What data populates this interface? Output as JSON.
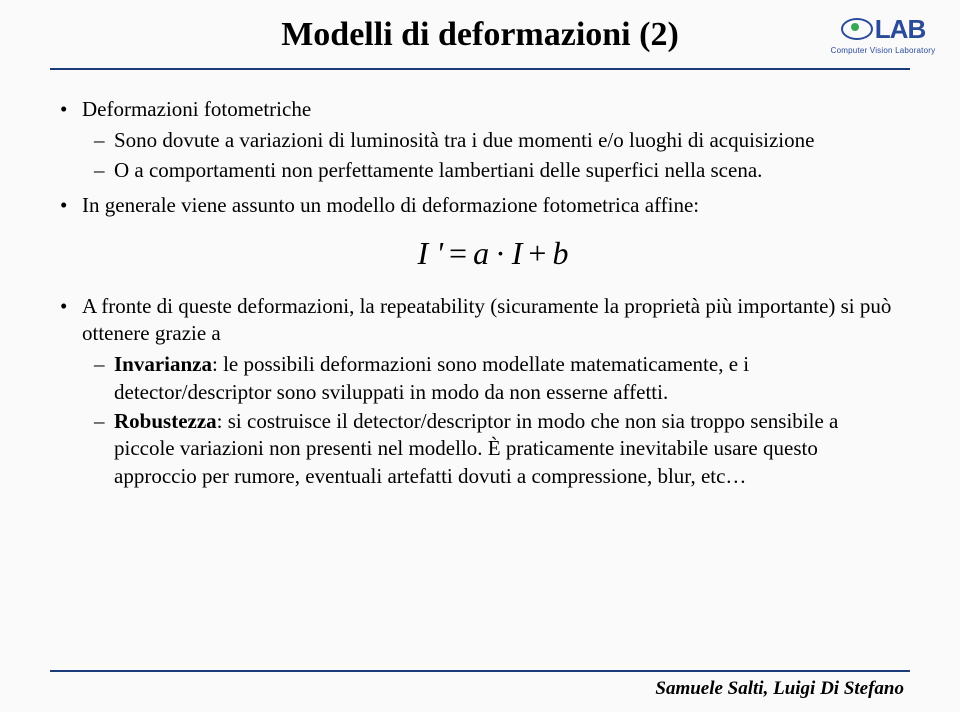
{
  "title": "Modelli di deformazioni (2)",
  "logo": {
    "name": "LAB",
    "sub": "Computer Vision Laboratory"
  },
  "bullets": {
    "b1": {
      "head": "Deformazioni fotometriche",
      "d1": "Sono dovute a variazioni di luminosità tra i due momenti e/o luoghi di acquisizione",
      "d2": "O a comportamenti non perfettamente lambertiani delle superfici nella scena."
    },
    "b2": {
      "head": "In generale viene assunto un modello di deformazione fotometrica affine:"
    },
    "b3": {
      "head": "A fronte di queste deformazioni, la repeatability (sicuramente la proprietà più importante) si può ottenere grazie a",
      "inv_label": "Invarianza",
      "inv_text": ": le possibili deformazioni sono modellate matematicamente, e i detector/descriptor sono sviluppati in modo da non esserne affetti.",
      "rob_label": "Robustezza",
      "rob_text": ": si costruisce il detector/descriptor in modo che non sia troppo sensibile a piccole variazioni non presenti nel modello. È praticamente inevitabile usare questo approccio per rumore, eventuali artefatti dovuti a compressione, blur, etc…"
    }
  },
  "formula": {
    "Iprime": "I '",
    "eq": "=",
    "a": "a",
    "dot": "·",
    "I": "I",
    "plus": "+",
    "b": "b"
  },
  "footer": "Samuele Salti, Luigi Di Stefano",
  "colors": {
    "rule": "#1a3a7a",
    "logo": "#2a4a9a",
    "eye_green": "#34a853",
    "bg": "#fafafa"
  }
}
